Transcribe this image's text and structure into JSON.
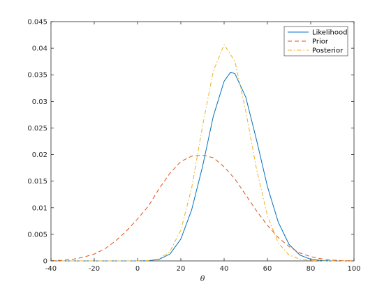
{
  "chart_data": {
    "type": "line",
    "title": "",
    "xlabel": "θ",
    "ylabel": "",
    "xlim": [
      -40,
      100
    ],
    "ylim": [
      0,
      0.045
    ],
    "xticks": [
      -40,
      -20,
      0,
      20,
      40,
      60,
      80,
      100
    ],
    "yticks": [
      0,
      0.005,
      0.01,
      0.015,
      0.02,
      0.025,
      0.03,
      0.035,
      0.04,
      0.045
    ],
    "xtick_labels": [
      "-40",
      "-20",
      "0",
      "20",
      "40",
      "60",
      "80",
      "100"
    ],
    "ytick_labels": [
      "0",
      "0.005",
      "0.01",
      "0.015",
      "0.02",
      "0.025",
      "0.03",
      "0.035",
      "0.04",
      "0.045"
    ],
    "grid": false,
    "legend_position": "top-right",
    "series": [
      {
        "name": "Likelihood",
        "style": "solid",
        "color": "#0072BD",
        "x": [
          -40,
          -30,
          -20,
          -10,
          0,
          5,
          10,
          15,
          20,
          25,
          30,
          35,
          40,
          43,
          45,
          50,
          55,
          60,
          65,
          70,
          75,
          80,
          85,
          90,
          100
        ],
        "y": [
          0,
          0,
          0,
          0,
          0,
          5e-05,
          0.0003,
          0.0013,
          0.0041,
          0.0096,
          0.0177,
          0.0272,
          0.0338,
          0.0355,
          0.0352,
          0.0308,
          0.0227,
          0.014,
          0.0073,
          0.0031,
          0.0011,
          0.0003,
          8e-05,
          0,
          0
        ]
      },
      {
        "name": "Prior",
        "style": "dashed",
        "color": "#D95319",
        "x": [
          -40,
          -35,
          -30,
          -25,
          -20,
          -15,
          -10,
          -5,
          0,
          5,
          10,
          15,
          20,
          25,
          30,
          35,
          40,
          45,
          50,
          55,
          60,
          65,
          70,
          75,
          80,
          85,
          90,
          95,
          100
        ],
        "y": [
          4e-05,
          0.00012,
          0.0003,
          0.0007,
          0.0013,
          0.0023,
          0.0038,
          0.0057,
          0.0079,
          0.0103,
          0.0136,
          0.0165,
          0.0187,
          0.0197,
          0.0199,
          0.0194,
          0.0177,
          0.0154,
          0.0124,
          0.0094,
          0.0067,
          0.0044,
          0.0027,
          0.0015,
          0.0008,
          0.0004,
          0.00015,
          5e-05,
          2e-05
        ]
      },
      {
        "name": "Posterior",
        "style": "dashdot",
        "color": "#EDB120",
        "x": [
          -40,
          0,
          5,
          10,
          15,
          20,
          25,
          30,
          35,
          40,
          45,
          50,
          55,
          60,
          65,
          70,
          75,
          80,
          85,
          100
        ],
        "y": [
          0,
          0,
          5e-05,
          0.0004,
          0.0018,
          0.0058,
          0.0137,
          0.0253,
          0.0357,
          0.0407,
          0.0375,
          0.0282,
          0.0172,
          0.0085,
          0.0034,
          0.0011,
          0.0003,
          6e-05,
          0,
          0
        ]
      }
    ]
  }
}
